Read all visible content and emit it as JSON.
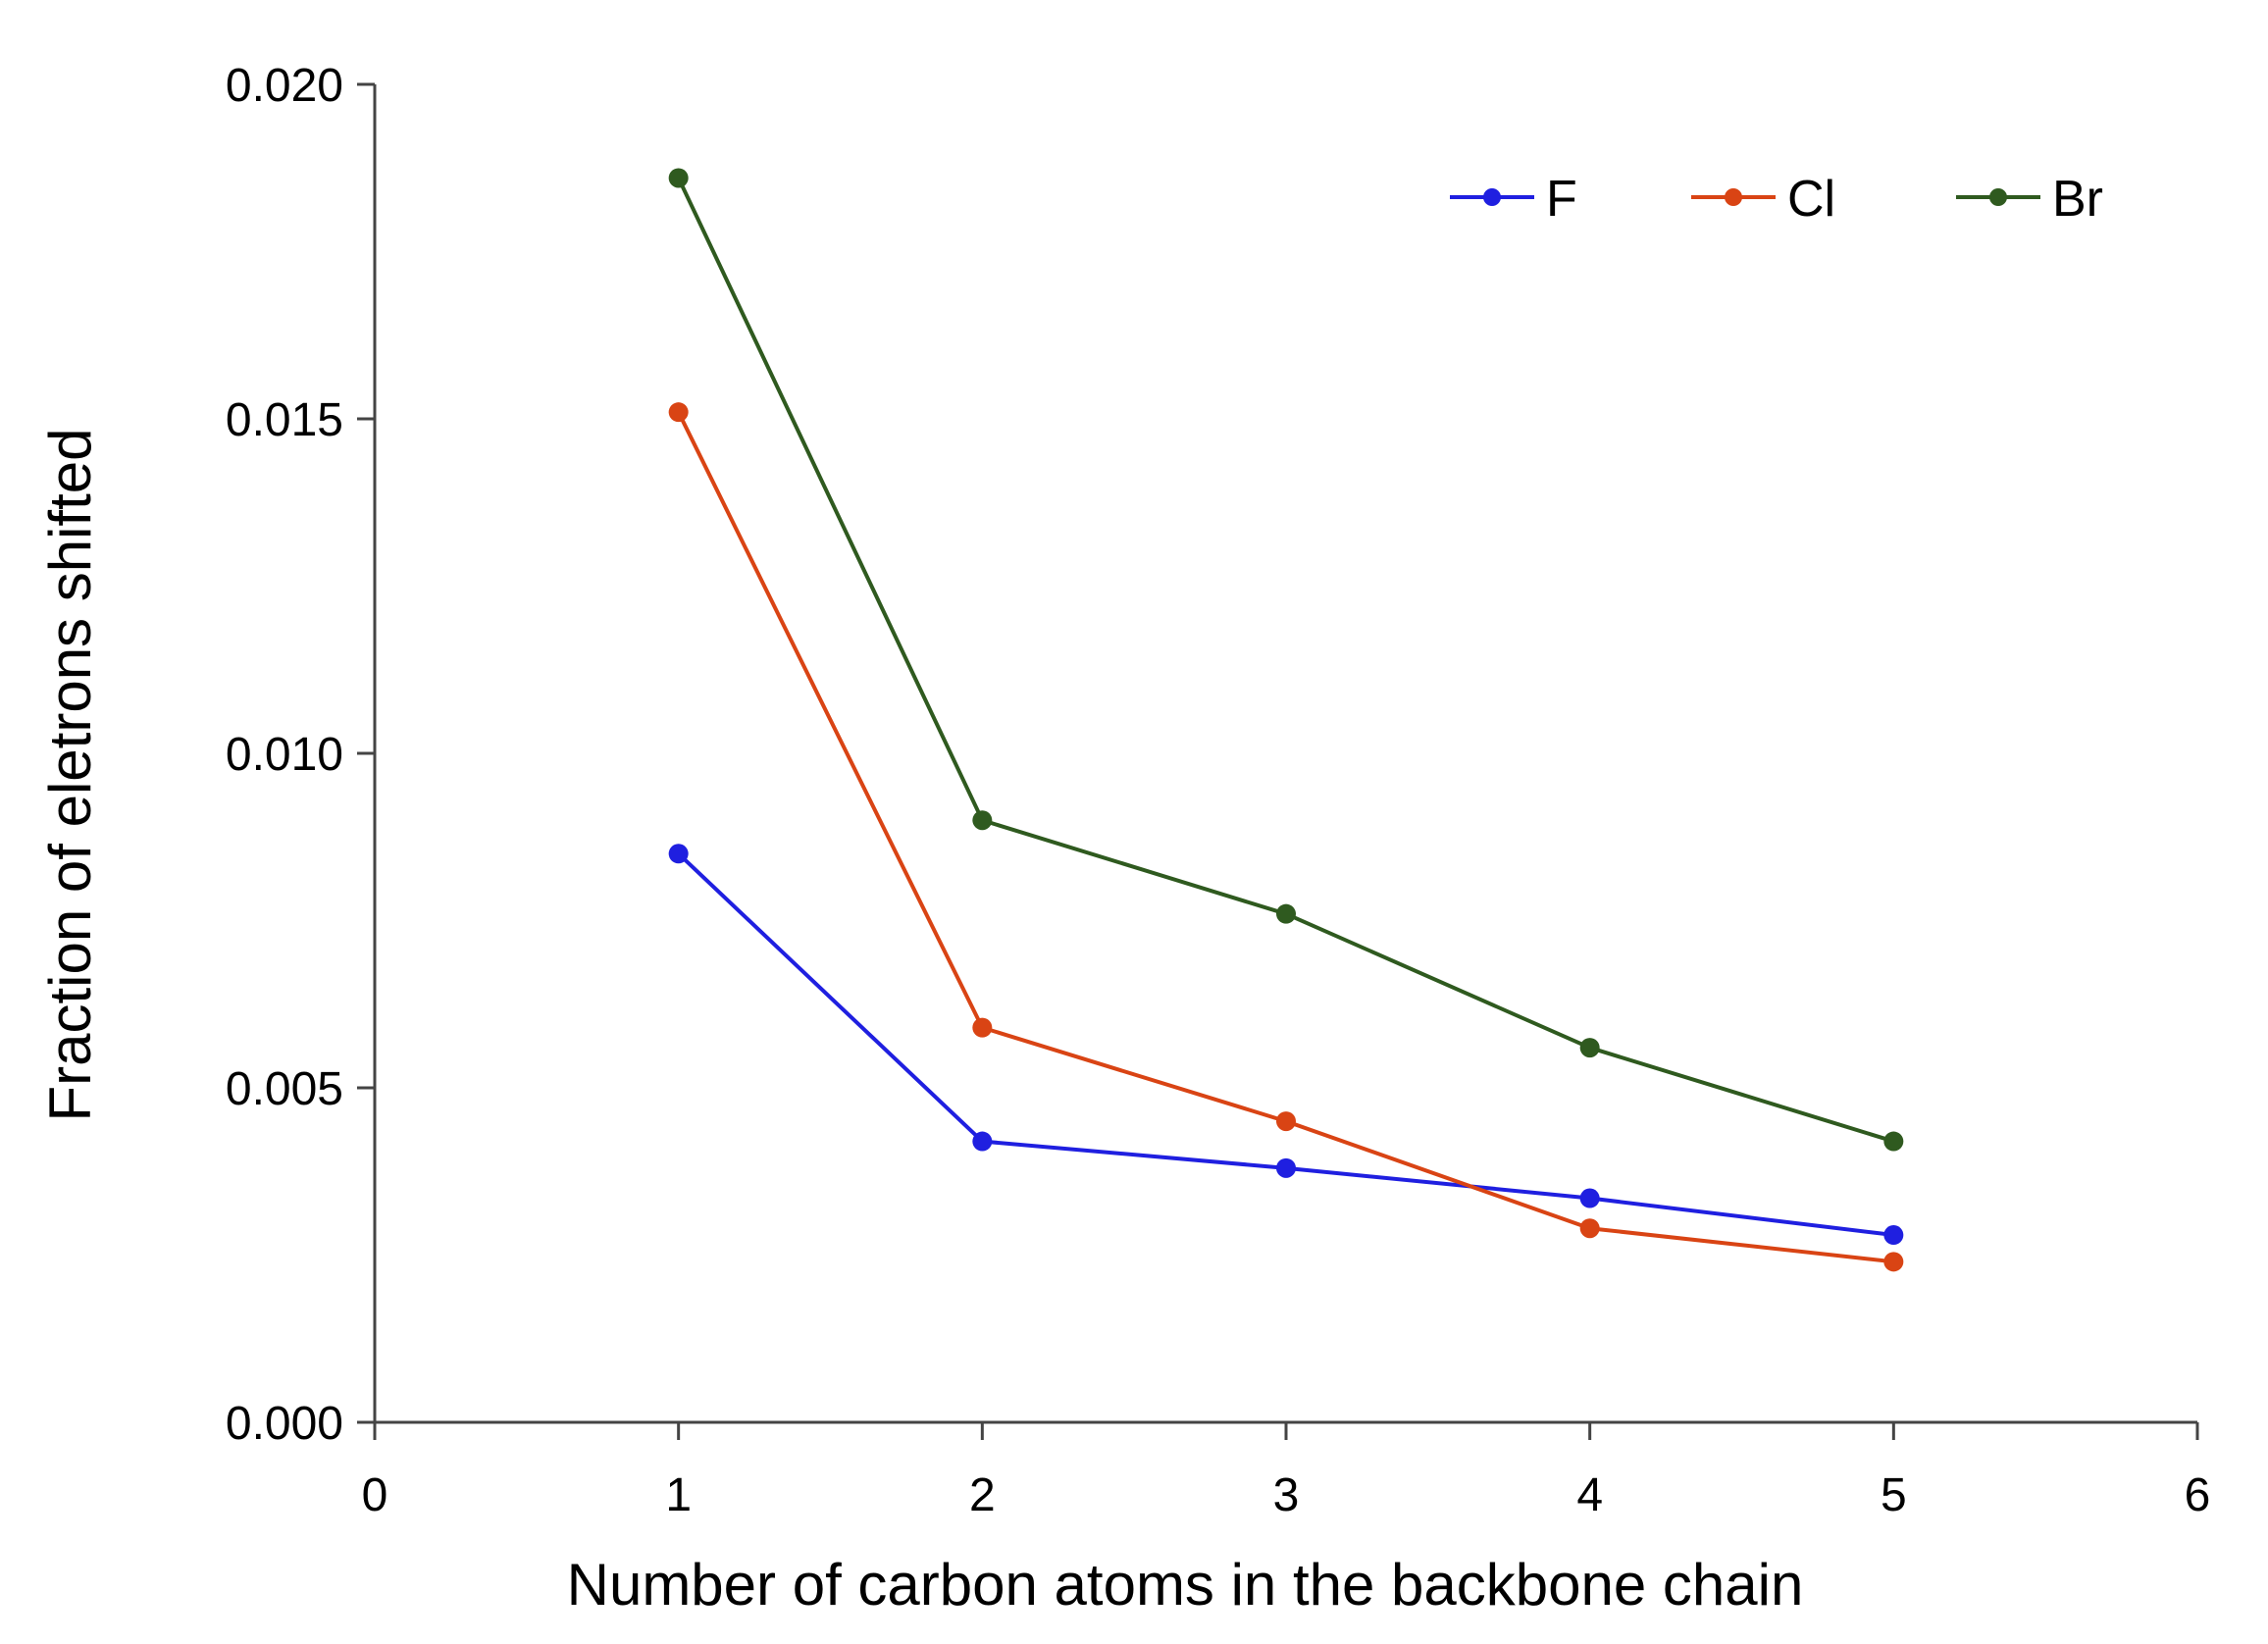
{
  "chart_data": {
    "type": "line",
    "title": "",
    "xlabel": "Number of carbon atoms in the backbone chain",
    "ylabel": "Fraction of eletrons shifted",
    "xlim": [
      0,
      6
    ],
    "ylim": [
      0,
      0.02
    ],
    "x_ticks": [
      "0",
      "1",
      "2",
      "3",
      "4",
      "5",
      "6"
    ],
    "y_ticks": [
      "0.000",
      "0.005",
      "0.010",
      "0.015",
      "0.020"
    ],
    "x_tick_values": [
      0,
      1,
      2,
      3,
      4,
      5,
      6
    ],
    "y_tick_values": [
      0,
      0.005,
      0.01,
      0.015,
      0.02
    ],
    "grid": false,
    "legend_position": "top-right",
    "x": [
      1,
      2,
      3,
      4,
      5
    ],
    "series": [
      {
        "name": "F",
        "color": "#1f1fe0",
        "values": [
          0.0085,
          0.0042,
          0.0038,
          0.00335,
          0.0028
        ]
      },
      {
        "name": "Cl",
        "color": "#d94414",
        "values": [
          0.0151,
          0.0059,
          0.0045,
          0.0029,
          0.0024
        ]
      },
      {
        "name": "Br",
        "color": "#2f5a1f",
        "values": [
          0.0186,
          0.009,
          0.0076,
          0.0056,
          0.0042
        ]
      }
    ]
  }
}
